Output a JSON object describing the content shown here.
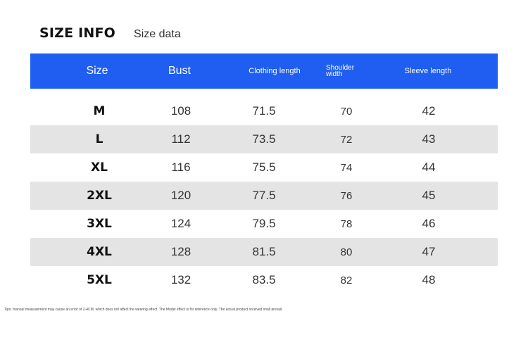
{
  "title": {
    "main": "SIZE INFO",
    "sub": "Size data"
  },
  "table": {
    "header_color": "#1f5ef0",
    "shade_color": "#e4e4e4",
    "headers": {
      "size": "Size",
      "bust": "Bust",
      "clothing_length": "Clothing length",
      "shoulder_line1": "Shoulder",
      "shoulder_line2": "width",
      "sleeve_length": "Sleeve length"
    },
    "rows": [
      {
        "size": "M",
        "bust": "108",
        "clothing_length": "71.5",
        "shoulder_width": "70",
        "sleeve_length": "42"
      },
      {
        "size": "L",
        "bust": "112",
        "clothing_length": "73.5",
        "shoulder_width": "72",
        "sleeve_length": "43"
      },
      {
        "size": "XL",
        "bust": "116",
        "clothing_length": "75.5",
        "shoulder_width": "74",
        "sleeve_length": "44"
      },
      {
        "size": "2XL",
        "bust": "120",
        "clothing_length": "77.5",
        "shoulder_width": "76",
        "sleeve_length": "45"
      },
      {
        "size": "3XL",
        "bust": "124",
        "clothing_length": "79.5",
        "shoulder_width": "78",
        "sleeve_length": "46"
      },
      {
        "size": "4XL",
        "bust": "128",
        "clothing_length": "81.5",
        "shoulder_width": "80",
        "sleeve_length": "47"
      },
      {
        "size": "5XL",
        "bust": "132",
        "clothing_length": "83.5",
        "shoulder_width": "82",
        "sleeve_length": "48"
      }
    ]
  },
  "tips": "Tips: manual measurement may cause an error of 2-4CM, which does not affect the wearing effect. The Model effect is for reference only. The actual product received shall prevail."
}
